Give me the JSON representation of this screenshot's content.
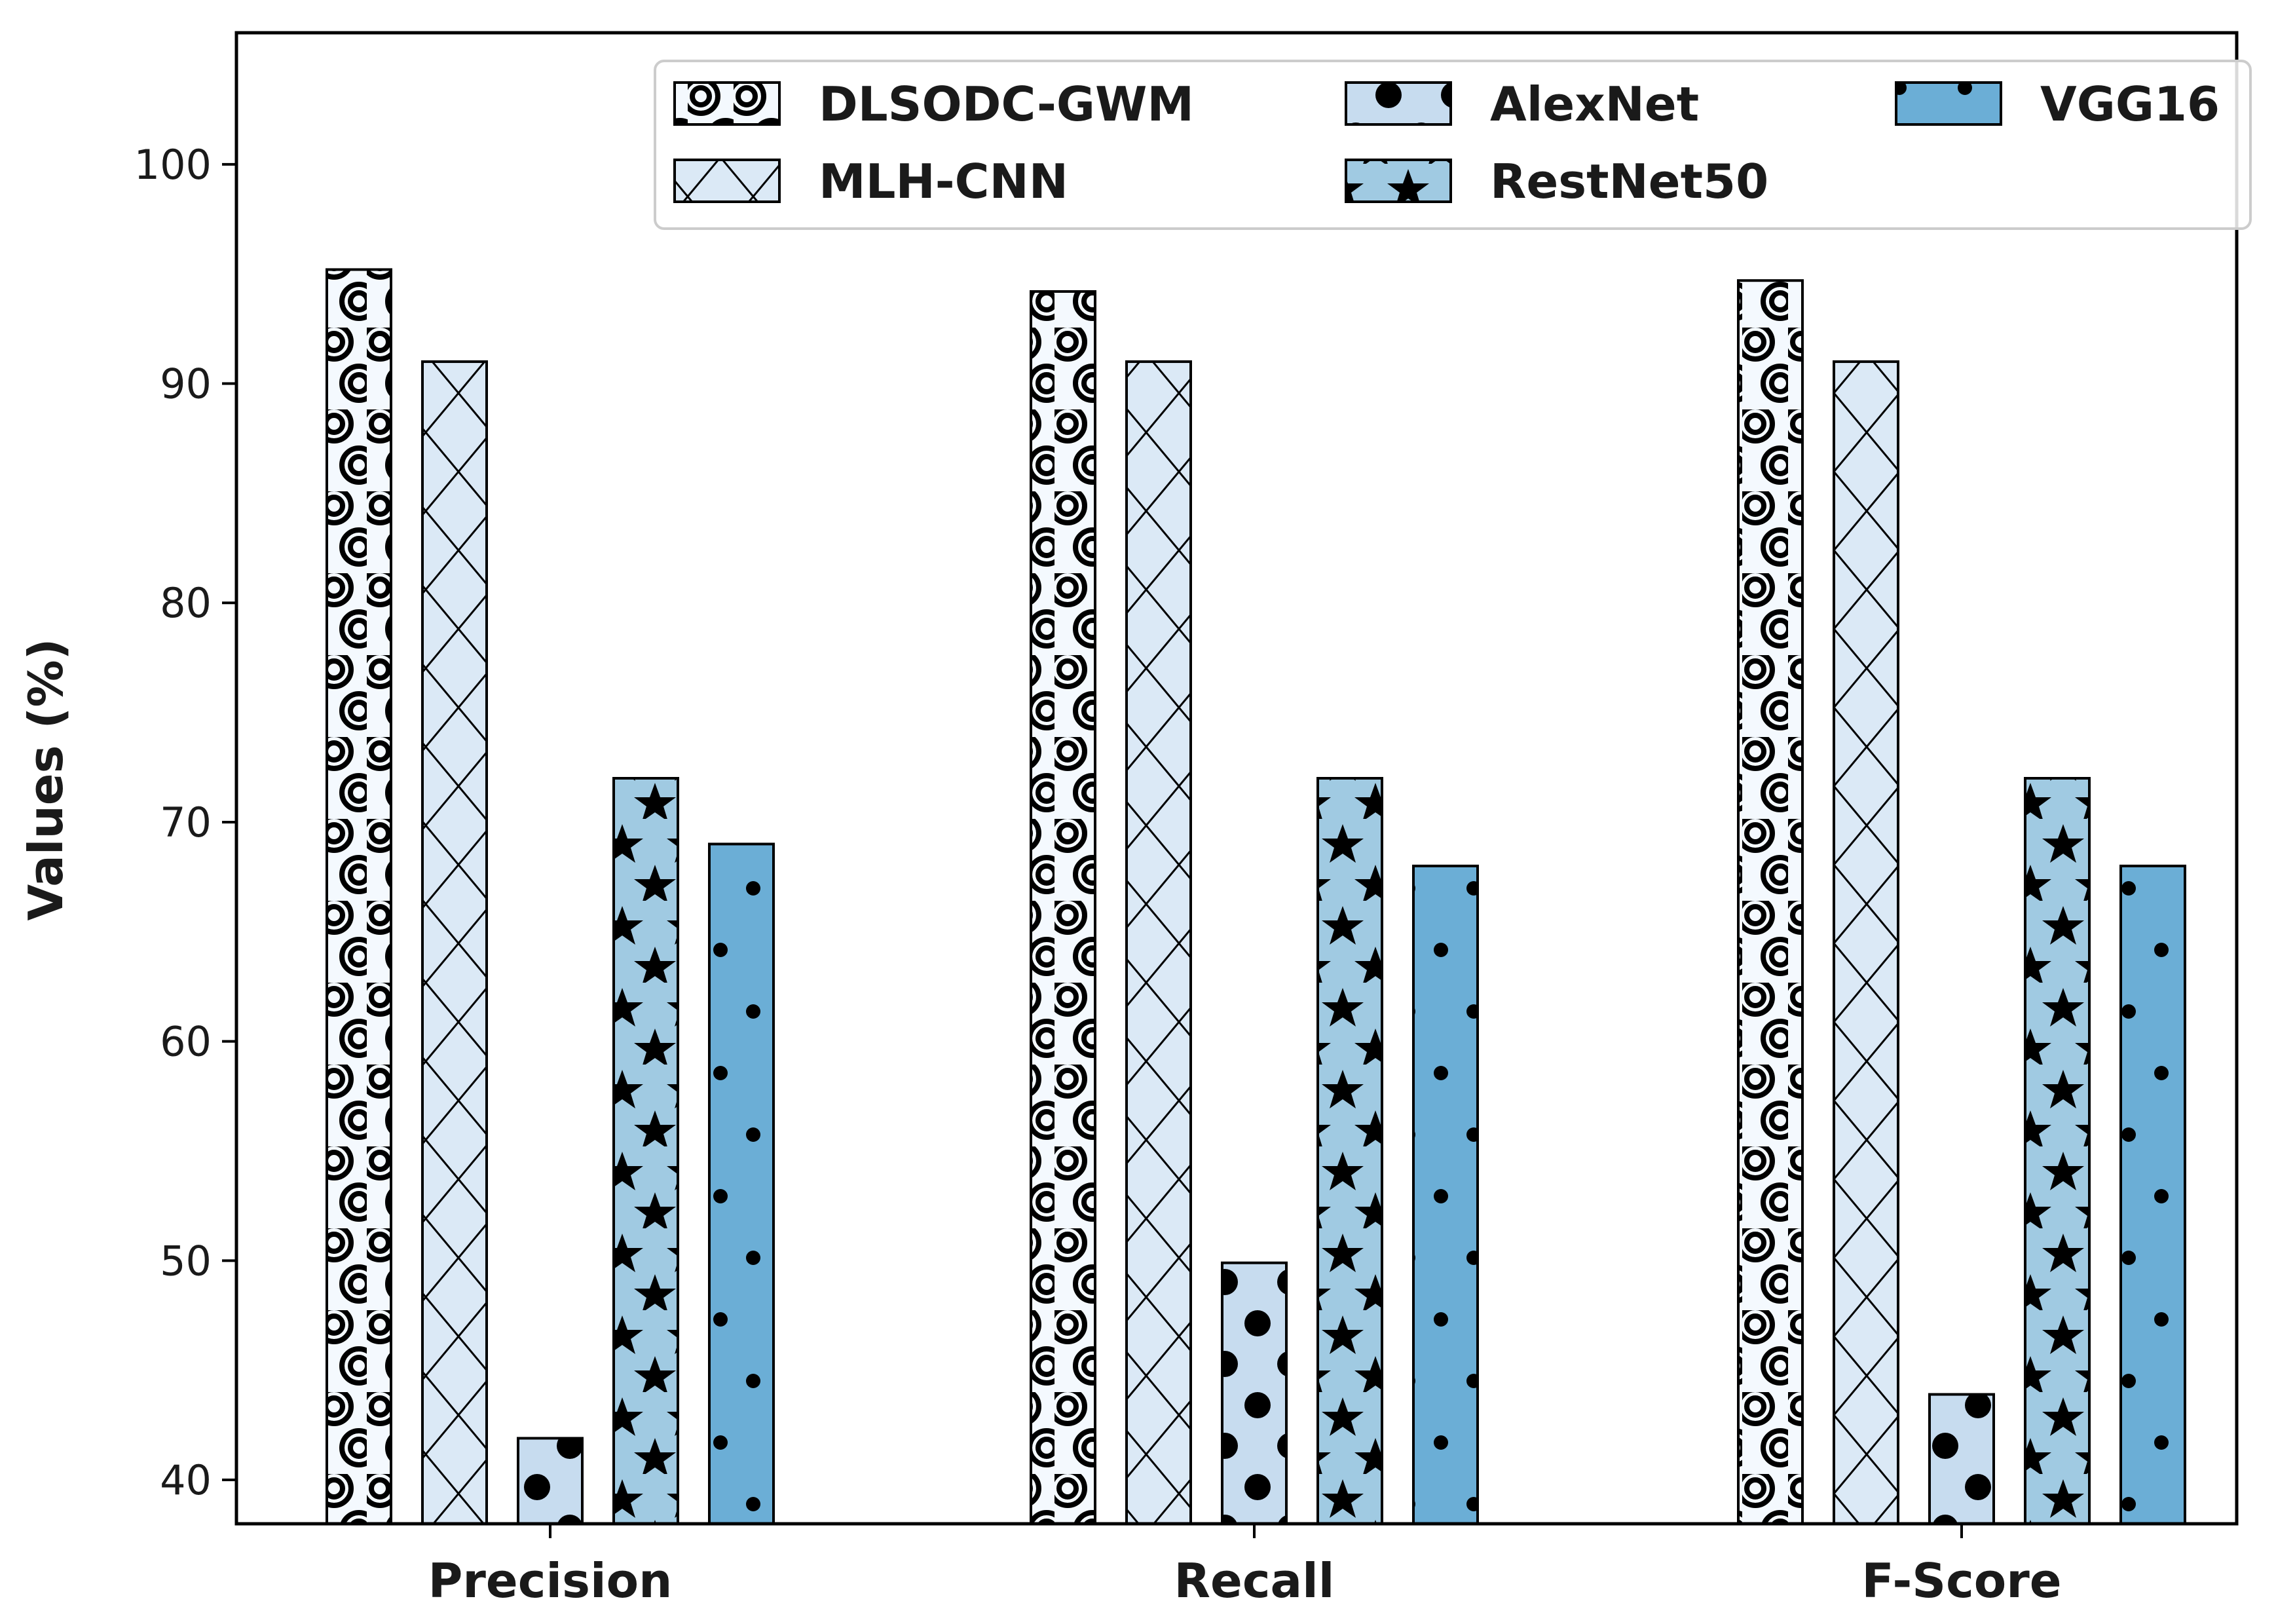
{
  "chart_data": {
    "type": "bar",
    "title": "",
    "xlabel": "",
    "ylabel": "Values (%)",
    "ylim": [
      38,
      106
    ],
    "yticks": [
      40,
      50,
      60,
      70,
      80,
      90,
      100
    ],
    "grid": false,
    "legend_position": "top-right",
    "categories": [
      "Precision",
      "Recall",
      "F-Score"
    ],
    "series": [
      {
        "name": "DLSODC-GWM",
        "values": [
          95.2,
          94.2,
          94.7
        ],
        "color": "#f4f9fe",
        "pattern": "rings"
      },
      {
        "name": "MLH-CNN",
        "values": [
          91.0,
          91.0,
          91.0
        ],
        "color": "#dbe9f6",
        "pattern": "crosshatch"
      },
      {
        "name": "AlexNet",
        "values": [
          41.9,
          49.9,
          43.9
        ],
        "color": "#c7dcef",
        "pattern": "large-dots"
      },
      {
        "name": "RestNet50",
        "values": [
          72.0,
          72.0,
          72.0
        ],
        "color": "#a0cae2",
        "pattern": "stars"
      },
      {
        "name": "VGG16",
        "values": [
          69.0,
          68.0,
          68.0
        ],
        "color": "#6baed6",
        "pattern": "small-dots"
      }
    ]
  }
}
